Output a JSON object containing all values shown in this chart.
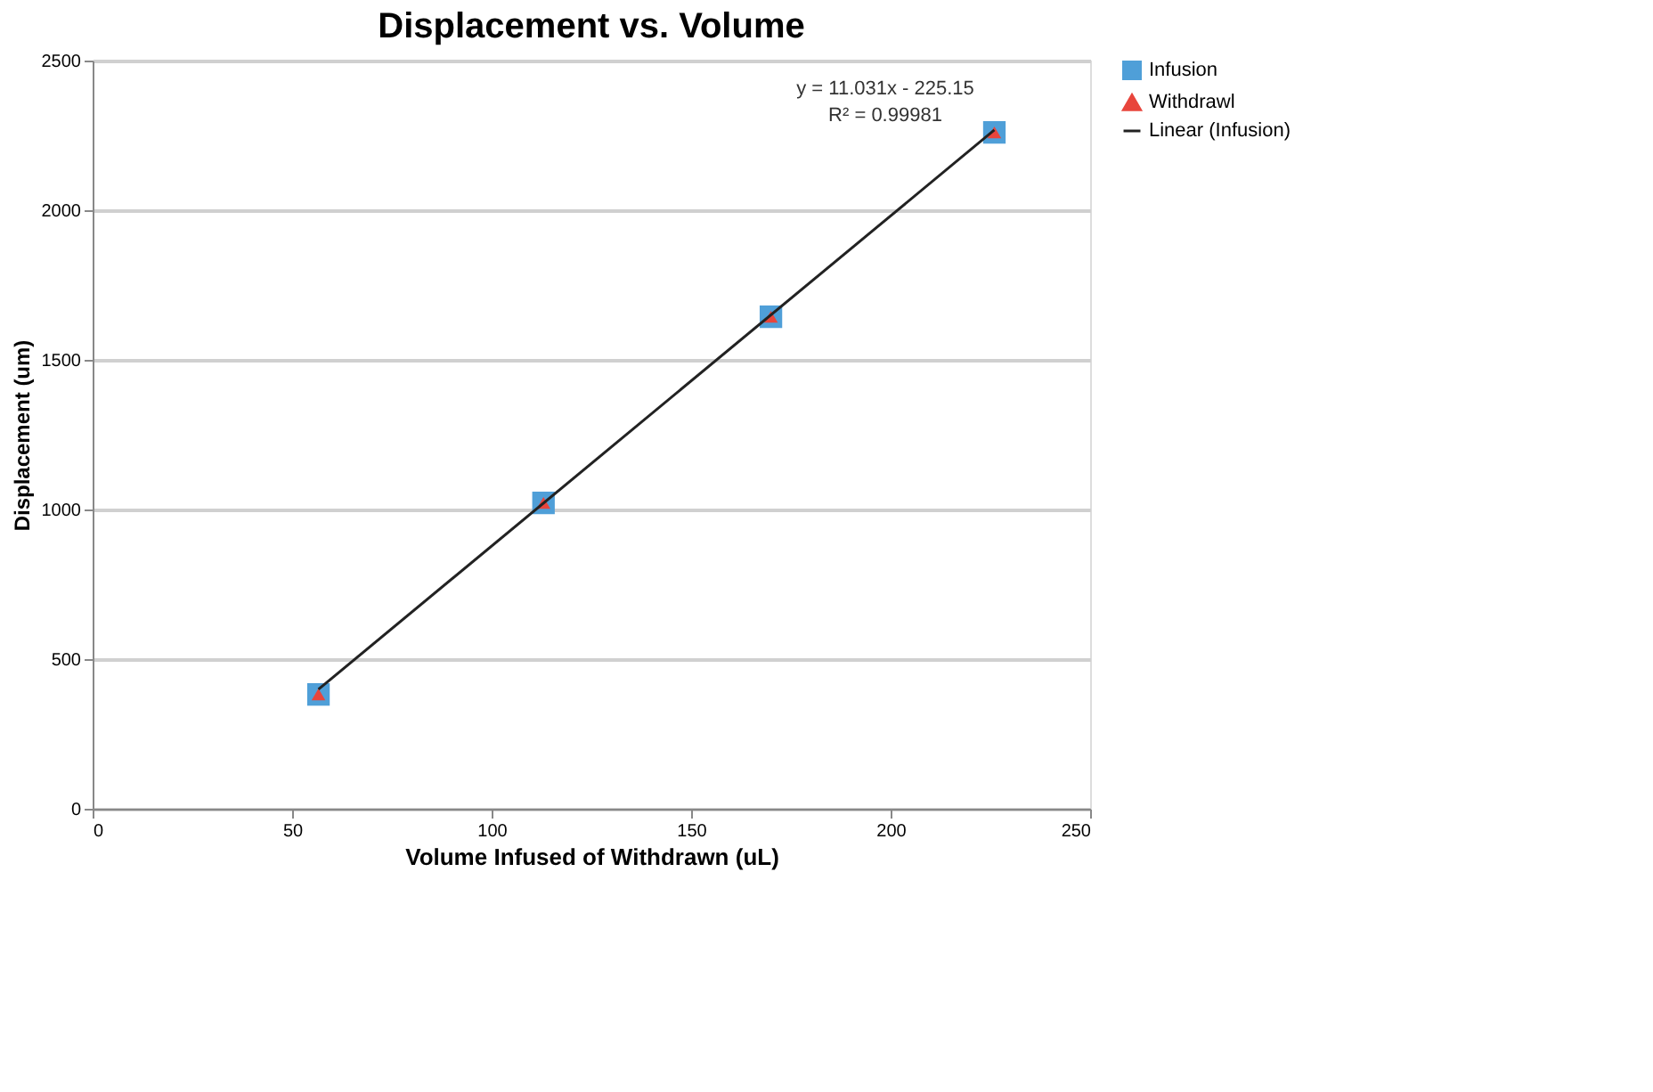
{
  "chart_data": {
    "type": "scatter",
    "title": "Displacement vs. Volume",
    "xlabel": "Volume Infused of Withdrawn (uL)",
    "ylabel": "Displacement (um)",
    "x": [
      56.6,
      113,
      170,
      226
    ],
    "series": [
      {
        "name": "Infusion",
        "color": "#4f9fd8",
        "marker": "square",
        "values": [
          382,
          1022,
          1644,
          2260
        ]
      },
      {
        "name": "Withdrawl",
        "color": "#e8453c",
        "marker": "triangle",
        "values": [
          382,
          1022,
          1644,
          2260
        ]
      },
      {
        "name": "Linear (Infusion)",
        "type": "line",
        "color": "#222222",
        "marker": "none",
        "x": [
          56.6,
          226
        ],
        "values": [
          399,
          2268
        ]
      }
    ],
    "annotations": [
      "y = 11.031x - 225.15",
      "R² = 0.99981"
    ],
    "xlim": [
      0,
      250
    ],
    "xticks": [
      0,
      50,
      100,
      150,
      200,
      250
    ],
    "ylim": [
      0,
      2500
    ],
    "yticks": [
      0,
      500,
      1000,
      1500,
      2000,
      2500
    ],
    "grid": "y",
    "legend": "right"
  }
}
